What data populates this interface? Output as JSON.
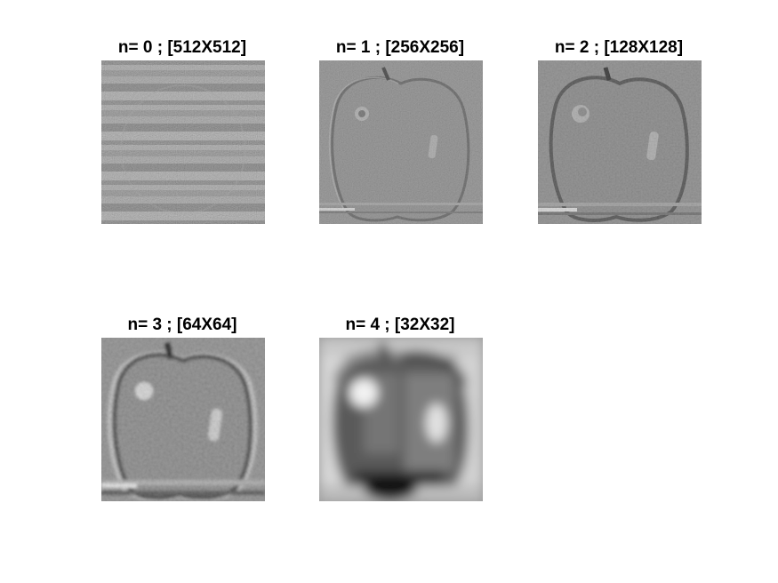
{
  "figure": {
    "panels": [
      {
        "title": "n= 0 ; [512X512]",
        "level": 0,
        "size": "512X512"
      },
      {
        "title": "n= 1 ; [256X256]",
        "level": 1,
        "size": "256X256"
      },
      {
        "title": "n= 2 ; [128X128]",
        "level": 2,
        "size": "128X128"
      },
      {
        "title": "n= 3 ; [64X64]",
        "level": 3,
        "size": "64X64"
      },
      {
        "title": "n= 4 ; [32X32]",
        "level": 4,
        "size": "32X32"
      }
    ]
  },
  "colors": {
    "background": "#ffffff",
    "title_text": "#000000"
  }
}
